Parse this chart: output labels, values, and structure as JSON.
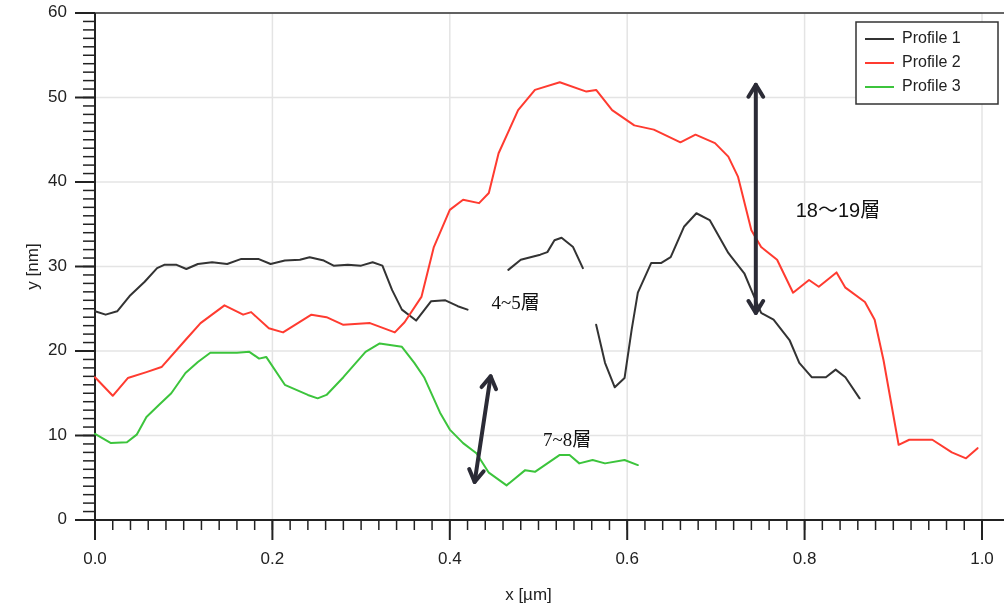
{
  "chart_data": {
    "type": "line",
    "xlabel": "x [µm]",
    "ylabel": "y [nm]",
    "xlim": [
      0,
      1.0
    ],
    "ylim": [
      0,
      60
    ],
    "xticks": [
      {
        "value": 0,
        "label": "0.0"
      },
      {
        "value": 0.2,
        "label": "0.2"
      },
      {
        "value": 0.4,
        "label": "0.4"
      },
      {
        "value": 0.6,
        "label": "0.6"
      },
      {
        "value": 0.8,
        "label": "0.8"
      },
      {
        "value": 1.0,
        "label": "1.0"
      }
    ],
    "yticks": [
      0,
      10,
      20,
      30,
      40,
      50,
      60
    ],
    "grid": true,
    "legend": "top right",
    "series": [
      {
        "name": "Profile 1",
        "color": "#333333",
        "x": [
          0,
          0.012,
          0.025,
          0.039,
          0.056,
          0.07,
          0.078,
          0.092,
          0.103,
          0.116,
          0.132,
          0.149,
          0.165,
          0.184,
          0.198,
          0.214,
          0.231,
          0.242,
          0.258,
          0.269,
          0.285,
          0.3,
          0.313,
          0.324,
          0.335,
          0.346,
          0.362,
          0.379,
          0.395,
          0.409,
          0.42,
          null,
          0.466,
          0.48,
          0.502,
          0.51,
          0.518,
          0.526,
          0.539,
          0.55,
          null,
          0.565,
          0.575,
          0.586,
          0.597,
          0.605,
          0.612,
          0.627,
          0.638,
          0.649,
          0.664,
          0.678,
          0.693,
          0.714,
          0.732,
          0.74,
          0.751,
          0.765,
          0.783,
          0.794,
          0.808,
          0.824,
          0.835,
          0.846,
          0.862
        ],
        "values": [
          24.7,
          24.3,
          24.7,
          26.5,
          28.2,
          29.8,
          30.2,
          30.2,
          29.7,
          30.3,
          30.5,
          30.3,
          30.9,
          30.9,
          30.3,
          30.7,
          30.8,
          31.1,
          30.7,
          30.1,
          30.2,
          30.1,
          30.5,
          30.1,
          27.2,
          24.9,
          23.6,
          25.9,
          26.0,
          25.3,
          24.9,
          null,
          29.6,
          30.8,
          31.4,
          31.7,
          33.1,
          33.4,
          32.3,
          29.8,
          null,
          23.1,
          18.6,
          15.7,
          16.8,
          22.5,
          26.9,
          30.4,
          30.4,
          31.1,
          34.7,
          36.3,
          35.5,
          31.6,
          29.2,
          27.2,
          24.5,
          23.7,
          21.3,
          18.6,
          16.9,
          16.9,
          17.8,
          16.9,
          14.4
        ]
      },
      {
        "name": "Profile 2",
        "color": "#ff3b30",
        "x": [
          0,
          0.02,
          0.037,
          0.058,
          0.075,
          0.102,
          0.119,
          0.146,
          0.167,
          0.176,
          0.196,
          0.212,
          0.244,
          0.261,
          0.28,
          0.31,
          0.338,
          0.349,
          0.368,
          0.382,
          0.4,
          0.415,
          0.433,
          0.444,
          0.455,
          0.477,
          0.496,
          0.524,
          0.554,
          0.565,
          0.583,
          0.608,
          0.63,
          0.66,
          0.677,
          0.699,
          0.714,
          0.725,
          0.74,
          0.751,
          0.769,
          0.787,
          0.805,
          0.816,
          0.836,
          0.846,
          0.868,
          0.879,
          0.889,
          0.906,
          0.918,
          0.944,
          0.966,
          0.982,
          0.995
        ],
        "values": [
          16.9,
          14.7,
          16.8,
          17.5,
          18.1,
          21.3,
          23.3,
          25.4,
          24.3,
          24.6,
          22.7,
          22.2,
          24.3,
          24.0,
          23.1,
          23.3,
          22.2,
          23.4,
          26.4,
          32.3,
          36.7,
          37.9,
          37.5,
          38.7,
          43.4,
          48.5,
          50.9,
          51.8,
          50.7,
          50.9,
          48.5,
          46.7,
          46.2,
          44.7,
          45.6,
          44.6,
          43.0,
          40.6,
          34.3,
          32.3,
          30.8,
          26.9,
          28.4,
          27.6,
          29.3,
          27.5,
          25.8,
          23.7,
          18.9,
          8.9,
          9.5,
          9.5,
          8.0,
          7.3,
          8.5
        ]
      },
      {
        "name": "Profile 3",
        "color": "#3cc43c",
        "x": [
          0,
          0.018,
          0.036,
          0.047,
          0.058,
          0.072,
          0.086,
          0.102,
          0.116,
          0.13,
          0.16,
          0.174,
          0.185,
          0.193,
          0.214,
          0.24,
          0.251,
          0.261,
          0.28,
          0.305,
          0.321,
          0.346,
          0.36,
          0.371,
          0.389,
          0.4,
          0.415,
          0.43,
          0.444,
          0.464,
          0.485,
          0.496,
          0.524,
          0.535,
          0.546,
          0.561,
          0.575,
          0.597,
          0.612
        ],
        "values": [
          10.2,
          9.1,
          9.2,
          10.1,
          12.2,
          13.6,
          15.0,
          17.4,
          18.7,
          19.8,
          19.8,
          19.9,
          19.1,
          19.3,
          16.0,
          14.8,
          14.4,
          14.8,
          16.9,
          19.9,
          20.9,
          20.5,
          18.6,
          16.9,
          12.7,
          10.7,
          9.1,
          7.9,
          5.6,
          4.1,
          5.9,
          5.7,
          7.7,
          7.7,
          6.7,
          7.1,
          6.7,
          7.1,
          6.5
        ]
      }
    ],
    "annotations": [
      "18～19層",
      "4~5層",
      "7~8層"
    ]
  }
}
